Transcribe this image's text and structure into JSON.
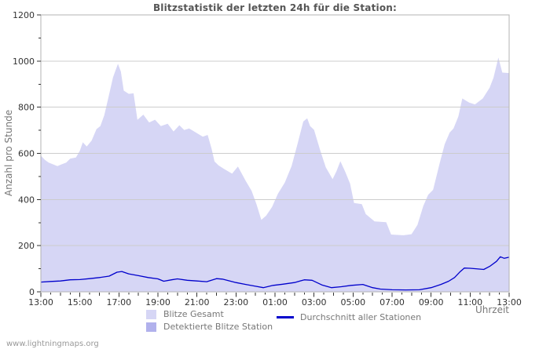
{
  "page": {
    "watermark": "www.lightningmaps.org"
  },
  "colors": {
    "background": "#ffffff",
    "grid": "#cccccc",
    "frame": "#b3b3b3",
    "tick": "#333333",
    "axis_text": "#333333",
    "label_text": "#777777",
    "title_text": "#555555",
    "watermark_text": "#999999",
    "area_total": "#d6d6f5",
    "area_station": "#b1b1ec",
    "line_avg": "#0000cc"
  },
  "chart_data": {
    "type": "area",
    "title": "Blitzstatistik der letzten 24h für die Station:",
    "xlabel": "Uhrzeit",
    "ylabel": "Anzahl pro Stunde",
    "ylim": [
      0,
      1200
    ],
    "y_ticks": [
      0,
      200,
      400,
      600,
      800,
      1000,
      1200
    ],
    "y_tick_labels": [
      "0",
      "200",
      "400",
      "600",
      "800",
      "1000",
      "1200"
    ],
    "x_hours_span": 24,
    "x_tick_labels": [
      "13:00",
      "15:00",
      "17:00",
      "19:00",
      "21:00",
      "23:00",
      "01:00",
      "03:00",
      "05:00",
      "07:00",
      "09:00",
      "11:00",
      "13:00"
    ],
    "grid": "horizontal",
    "legend_position": "bottom",
    "series": [
      {
        "name": "Blitze Gesamt",
        "type": "area",
        "color": "#d6d6f5",
        "points": [
          [
            0,
            590
          ],
          [
            0.2,
            572
          ],
          [
            0.4,
            560
          ],
          [
            0.6,
            553
          ],
          [
            0.85,
            545
          ],
          [
            1.05,
            552
          ],
          [
            1.3,
            560
          ],
          [
            1.5,
            577
          ],
          [
            1.8,
            582
          ],
          [
            2.0,
            612
          ],
          [
            2.15,
            648
          ],
          [
            2.35,
            630
          ],
          [
            2.6,
            655
          ],
          [
            2.85,
            705
          ],
          [
            3.05,
            718
          ],
          [
            3.25,
            765
          ],
          [
            3.45,
            838
          ],
          [
            3.7,
            930
          ],
          [
            3.95,
            988
          ],
          [
            4.1,
            955
          ],
          [
            4.25,
            872
          ],
          [
            4.5,
            858
          ],
          [
            4.75,
            860
          ],
          [
            4.95,
            745
          ],
          [
            5.25,
            768
          ],
          [
            5.55,
            734
          ],
          [
            5.85,
            746
          ],
          [
            6.15,
            718
          ],
          [
            6.5,
            728
          ],
          [
            6.8,
            695
          ],
          [
            7.1,
            722
          ],
          [
            7.35,
            701
          ],
          [
            7.6,
            708
          ],
          [
            7.95,
            690
          ],
          [
            8.3,
            672
          ],
          [
            8.55,
            680
          ],
          [
            8.75,
            620
          ],
          [
            8.9,
            565
          ],
          [
            9.1,
            548
          ],
          [
            9.4,
            532
          ],
          [
            9.8,
            512
          ],
          [
            10.1,
            543
          ],
          [
            10.5,
            480
          ],
          [
            10.8,
            438
          ],
          [
            11.05,
            380
          ],
          [
            11.3,
            312
          ],
          [
            11.55,
            330
          ],
          [
            11.85,
            368
          ],
          [
            12.15,
            425
          ],
          [
            12.5,
            473
          ],
          [
            12.85,
            545
          ],
          [
            13.15,
            640
          ],
          [
            13.45,
            738
          ],
          [
            13.65,
            752
          ],
          [
            13.8,
            718
          ],
          [
            14.0,
            702
          ],
          [
            14.3,
            618
          ],
          [
            14.6,
            540
          ],
          [
            14.95,
            488
          ],
          [
            15.15,
            522
          ],
          [
            15.35,
            566
          ],
          [
            15.6,
            520
          ],
          [
            15.85,
            468
          ],
          [
            16.05,
            385
          ],
          [
            16.45,
            380
          ],
          [
            16.65,
            337
          ],
          [
            17.1,
            305
          ],
          [
            17.7,
            302
          ],
          [
            17.95,
            248
          ],
          [
            18.6,
            245
          ],
          [
            19.0,
            250
          ],
          [
            19.3,
            290
          ],
          [
            19.6,
            372
          ],
          [
            19.85,
            420
          ],
          [
            20.1,
            442
          ],
          [
            20.45,
            560
          ],
          [
            20.7,
            640
          ],
          [
            20.95,
            690
          ],
          [
            21.15,
            708
          ],
          [
            21.4,
            760
          ],
          [
            21.6,
            838
          ],
          [
            21.95,
            820
          ],
          [
            22.25,
            812
          ],
          [
            22.65,
            838
          ],
          [
            23.0,
            885
          ],
          [
            23.2,
            928
          ],
          [
            23.45,
            1015
          ],
          [
            23.65,
            950
          ],
          [
            24,
            948
          ]
        ]
      },
      {
        "name": "Detektierte Blitze Station",
        "type": "area",
        "color": "#b1b1ec",
        "points": [
          [
            0,
            0
          ],
          [
            24,
            0
          ]
        ]
      },
      {
        "name": "Durchschnitt aller Stationen",
        "type": "line",
        "color": "#0000cc",
        "points": [
          [
            0,
            42
          ],
          [
            0.5,
            45
          ],
          [
            1,
            47
          ],
          [
            1.5,
            52
          ],
          [
            2,
            53
          ],
          [
            2.5,
            57
          ],
          [
            3,
            62
          ],
          [
            3.5,
            68
          ],
          [
            3.9,
            85
          ],
          [
            4.15,
            88
          ],
          [
            4.5,
            78
          ],
          [
            5,
            70
          ],
          [
            5.5,
            62
          ],
          [
            6,
            56
          ],
          [
            6.3,
            46
          ],
          [
            6.7,
            52
          ],
          [
            7,
            56
          ],
          [
            7.5,
            50
          ],
          [
            8,
            47
          ],
          [
            8.5,
            44
          ],
          [
            9,
            57
          ],
          [
            9.3,
            55
          ],
          [
            10,
            40
          ],
          [
            10.5,
            32
          ],
          [
            11,
            24
          ],
          [
            11.4,
            18
          ],
          [
            11.9,
            28
          ],
          [
            12.4,
            33
          ],
          [
            13,
            40
          ],
          [
            13.5,
            52
          ],
          [
            13.9,
            50
          ],
          [
            14.4,
            30
          ],
          [
            14.9,
            18
          ],
          [
            15.4,
            22
          ],
          [
            15.9,
            28
          ],
          [
            16.5,
            32
          ],
          [
            17,
            18
          ],
          [
            17.4,
            12
          ],
          [
            18,
            9
          ],
          [
            18.7,
            8
          ],
          [
            19.4,
            9
          ],
          [
            20,
            18
          ],
          [
            20.5,
            32
          ],
          [
            20.9,
            46
          ],
          [
            21.2,
            62
          ],
          [
            21.5,
            88
          ],
          [
            21.7,
            103
          ],
          [
            22,
            102
          ],
          [
            22.3,
            100
          ],
          [
            22.7,
            97
          ],
          [
            23,
            110
          ],
          [
            23.35,
            132
          ],
          [
            23.55,
            152
          ],
          [
            23.75,
            145
          ],
          [
            24,
            150
          ]
        ]
      }
    ]
  }
}
